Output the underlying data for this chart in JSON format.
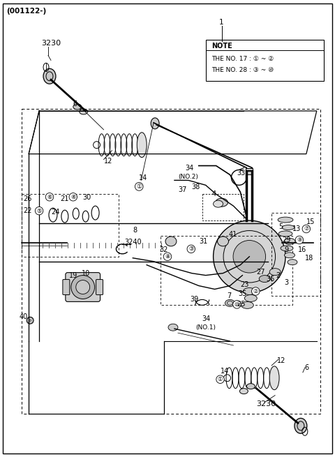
{
  "bg_color": "#ffffff",
  "line_color": "#000000",
  "text_color": "#000000",
  "gray_light": "#d8d8d8",
  "gray_mid": "#aaaaaa",
  "title_text": "(001122-)",
  "note_title": "NOTE",
  "note_line1": "THE NO. 17 : ① ~ ②",
  "note_line2": "THE NO. 28 : ③ ~ ⑩",
  "figsize": [
    4.8,
    6.55
  ],
  "dpi": 100
}
